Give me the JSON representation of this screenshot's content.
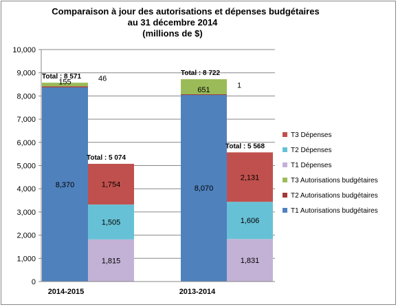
{
  "chart_data": {
    "type": "bar",
    "title_lines": [
      "Comparaison à jour des autorisations et dépenses budgétaires",
      "au 31 décembre 2014",
      "(millions de $)"
    ],
    "categories": [
      "2014-2015",
      "2013-2014"
    ],
    "ylim": [
      0,
      10000
    ],
    "yticks": [
      "0",
      "1,000",
      "2,000",
      "3,000",
      "4,000",
      "5,000",
      "6,000",
      "7,000",
      "8,000",
      "9,000",
      "10,000"
    ],
    "grid": true,
    "legend_position": "right",
    "groups": [
      {
        "category": "2014-2015",
        "stacks": [
          {
            "kind": "autorisations",
            "total_label": "Total : 8 571",
            "segments": [
              {
                "series": "T1 Autorisations budgétaires",
                "value": 8370,
                "label": "8,370"
              },
              {
                "series": "T2 Autorisations budgétaires",
                "value": 46,
                "label": "46"
              },
              {
                "series": "T3 Autorisations budgétaires",
                "value": 155,
                "label": "155"
              }
            ]
          },
          {
            "kind": "depenses",
            "total_label": "Total : 5 074",
            "segments": [
              {
                "series": "T1 Dépenses",
                "value": 1815,
                "label": "1,815"
              },
              {
                "series": "T2 Dépenses",
                "value": 1505,
                "label": "1,505"
              },
              {
                "series": "T3 Dépenses",
                "value": 1754,
                "label": "1,754"
              }
            ]
          }
        ]
      },
      {
        "category": "2013-2014",
        "stacks": [
          {
            "kind": "autorisations",
            "total_label": "Total : 8 722",
            "segments": [
              {
                "series": "T1 Autorisations budgétaires",
                "value": 8070,
                "label": "8,070"
              },
              {
                "series": "T2 Autorisations budgétaires",
                "value": 1,
                "label": "1"
              },
              {
                "series": "T3 Autorisations budgétaires",
                "value": 651,
                "label": "651"
              }
            ]
          },
          {
            "kind": "depenses",
            "total_label": "Total : 5 568",
            "segments": [
              {
                "series": "T1 Dépenses",
                "value": 1831,
                "label": "1,831"
              },
              {
                "series": "T2 Dépenses",
                "value": 1606,
                "label": "1,606"
              },
              {
                "series": "T3 Dépenses",
                "value": 2131,
                "label": "2,131"
              }
            ]
          }
        ]
      }
    ],
    "legend": [
      {
        "name": "T3 Dépenses",
        "color": "#c0504d"
      },
      {
        "name": "T2 Dépenses",
        "color": "#67c1d6"
      },
      {
        "name": "T1 Dépenses",
        "color": "#c3b2d6"
      },
      {
        "name": "T3 Autorisations budgétaires",
        "color": "#9bbb59"
      },
      {
        "name": "T2 Autorisations budgétaires",
        "color": "#a23a37"
      },
      {
        "name": "T1 Autorisations budgétaires",
        "color": "#4f81bd"
      }
    ]
  }
}
